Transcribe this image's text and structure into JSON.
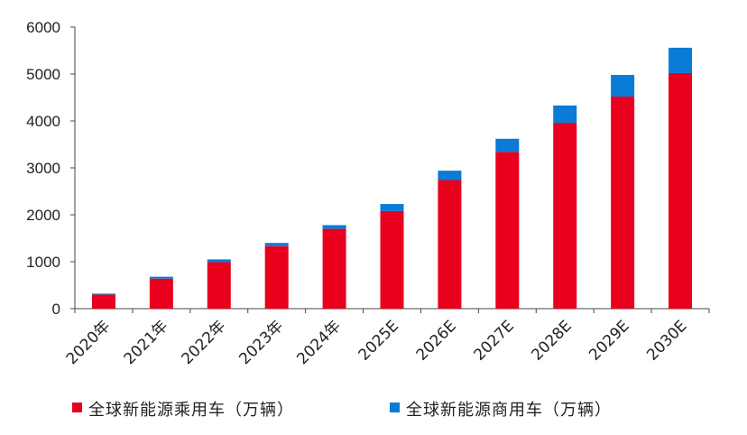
{
  "chart_data": {
    "type": "bar",
    "stacked": true,
    "categories": [
      "2020年",
      "2021年",
      "2022年",
      "2023年",
      "2024年",
      "2025E",
      "2026E",
      "2027E",
      "2028E",
      "2029E",
      "2030E"
    ],
    "series": [
      {
        "name": "全球新能源乘用车（万辆）",
        "color": "#e8001c",
        "values": [
          300,
          640,
          990,
          1330,
          1700,
          2080,
          2740,
          3340,
          3960,
          4520,
          5020
        ]
      },
      {
        "name": "全球新能源商用车（万辆）",
        "color": "#0a7bd6",
        "values": [
          20,
          40,
          60,
          70,
          80,
          150,
          200,
          280,
          370,
          460,
          540
        ]
      }
    ],
    "yticks": [
      0,
      1000,
      2000,
      3000,
      4000,
      5000,
      6000
    ],
    "ylim": [
      0,
      6000
    ],
    "grid": false,
    "legend_position": "bottom",
    "title": "",
    "xlabel": "",
    "ylabel": ""
  }
}
